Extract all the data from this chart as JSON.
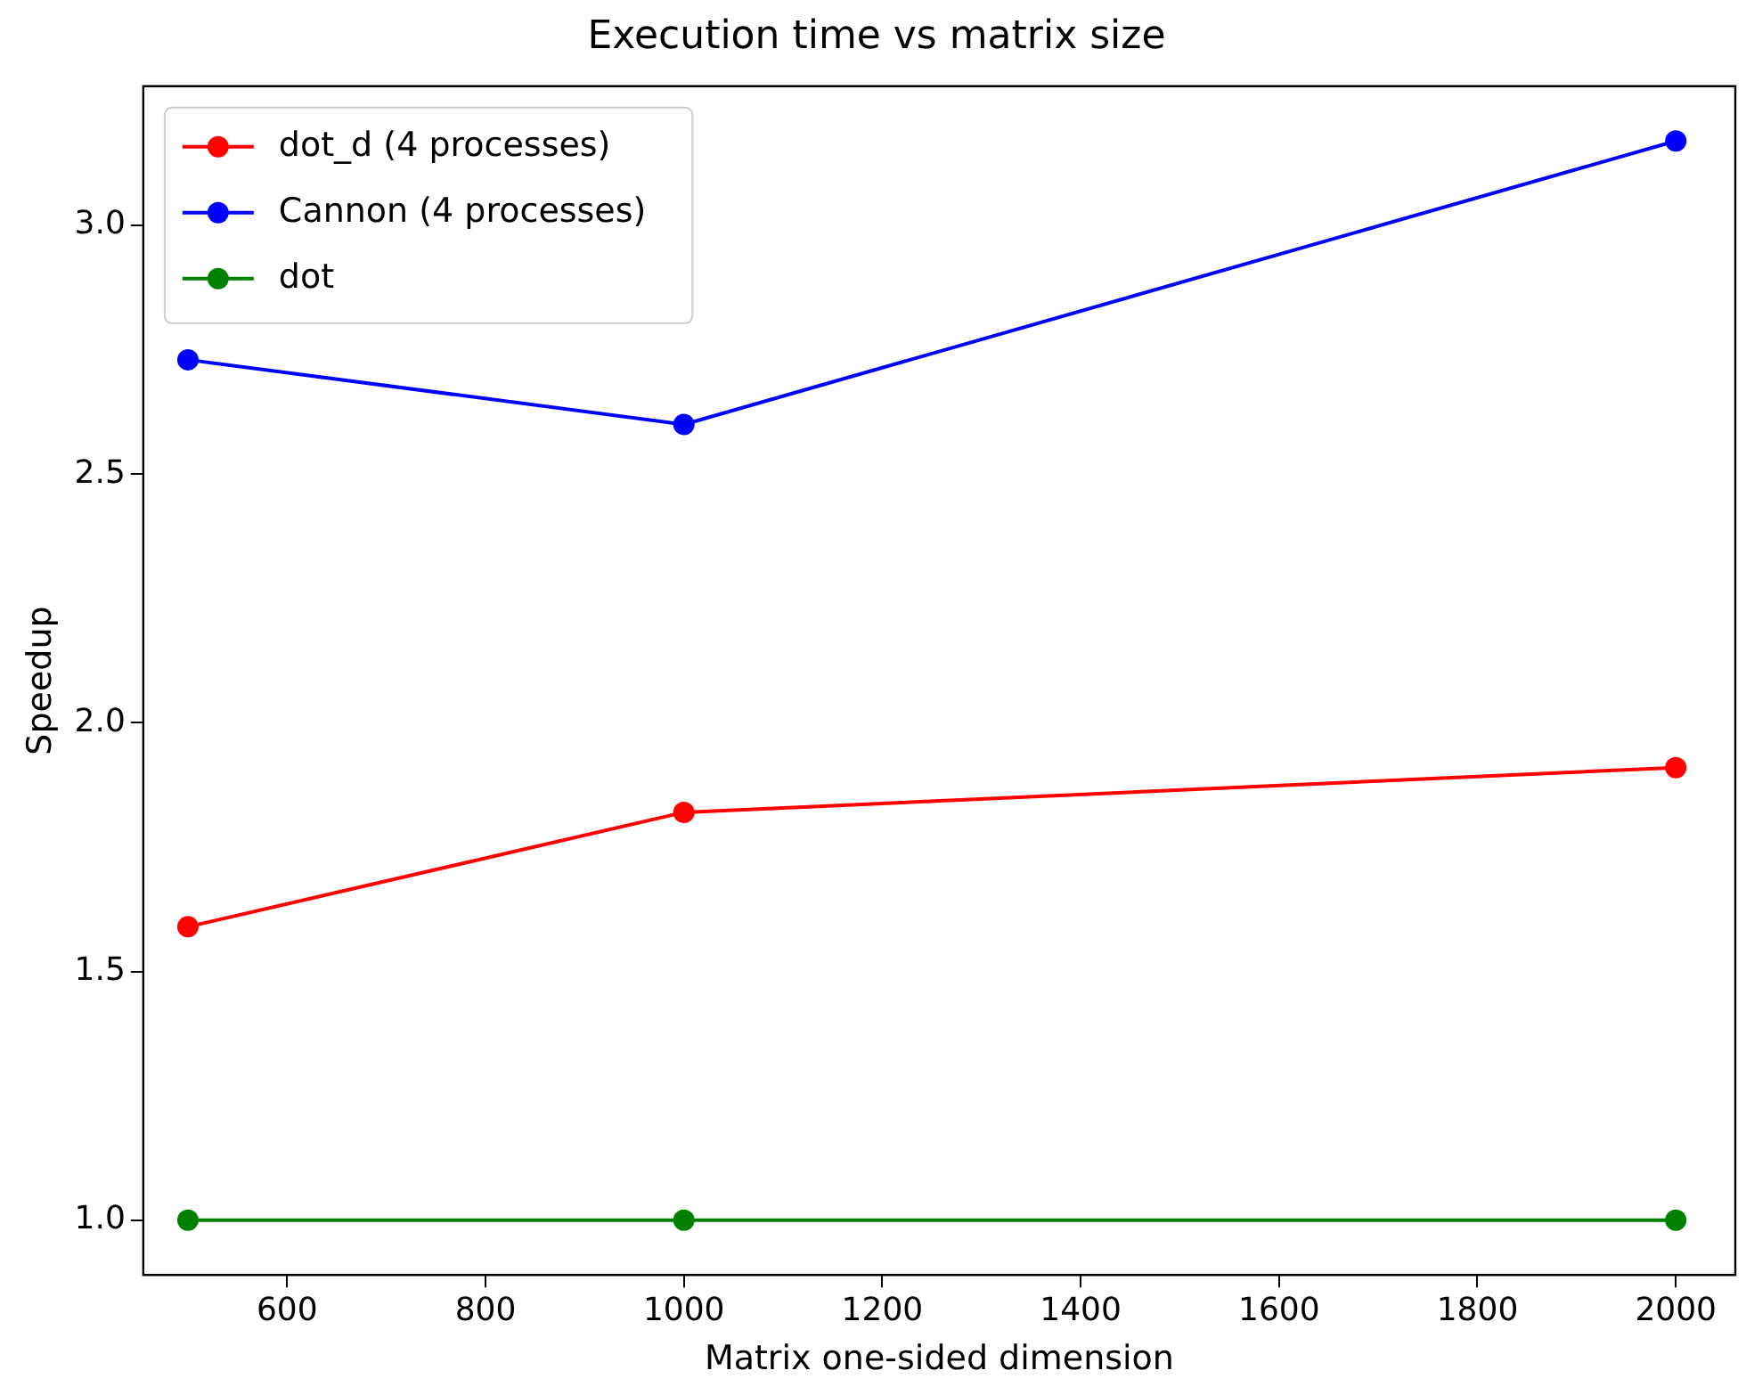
{
  "chart_data": {
    "type": "line",
    "title": "Execution time vs matrix size",
    "xlabel": "Matrix one-sided dimension",
    "ylabel": "Speedup",
    "x": [
      500,
      1000,
      2000
    ],
    "series": [
      {
        "name": "dot_d (4 processes)",
        "color": "#ff0000",
        "values": [
          1.59,
          1.82,
          1.91
        ]
      },
      {
        "name": "Cannon (4 processes)",
        "color": "#0000ff",
        "values": [
          2.73,
          2.6,
          3.17
        ]
      },
      {
        "name": "dot",
        "color": "#008000",
        "values": [
          1.0,
          1.0,
          1.0
        ]
      }
    ],
    "xlim": [
      455,
      2060
    ],
    "xticks": [
      600,
      800,
      1000,
      1200,
      1400,
      1600,
      1800,
      2000
    ],
    "ylim": [
      0.89,
      3.28
    ],
    "yticks": [
      {
        "value": 1.0,
        "label": "1.0"
      },
      {
        "value": 1.5,
        "label": "1.5"
      },
      {
        "value": 2.0,
        "label": "2.0"
      },
      {
        "value": 2.5,
        "label": "2.5"
      },
      {
        "value": 3.0,
        "label": "3.0"
      }
    ],
    "grid": false,
    "legend": "top left",
    "marker": "circle",
    "line_style": "solid"
  }
}
